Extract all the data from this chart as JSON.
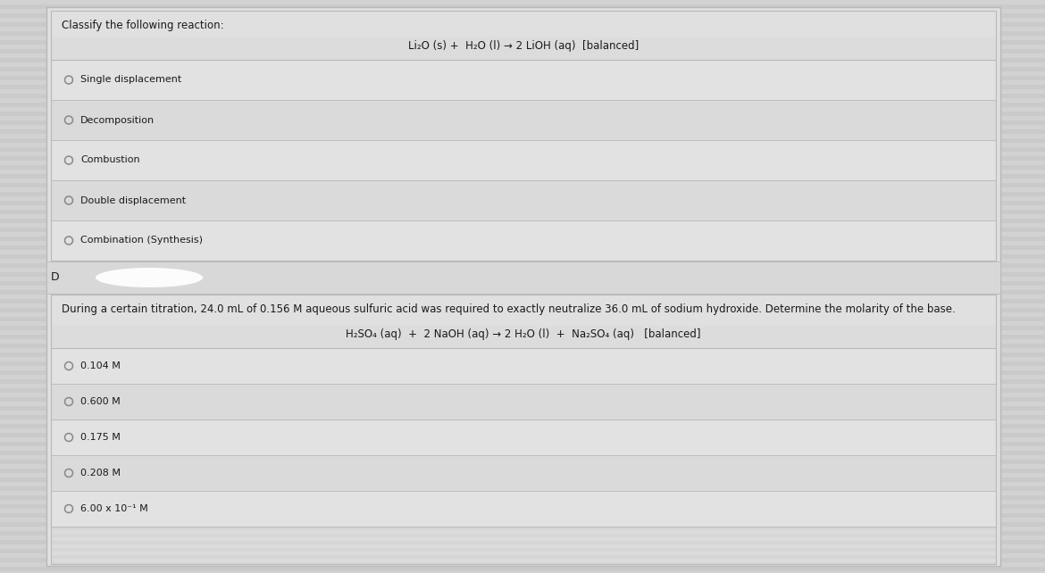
{
  "bg_outer": "#c8c8c8",
  "bg_main": "#d4d4d4",
  "panel_bg": "#dcdcdc",
  "panel_light": "#e2e2e2",
  "row_alt": "#d8d8d8",
  "border_color": "#b8b8b8",
  "text_color": "#1a1a1a",
  "circle_color": "#888888",
  "title1": "Classify the following reaction:",
  "equation1": "Li₂O (s) +  H₂O (l) → 2 LiOH (aq)  [balanced]",
  "options1": [
    "Single displacement",
    "Decomposition",
    "Combustion",
    "Double displacement",
    "Combination (Synthesis)"
  ],
  "title2": "During a certain titration, 24.0 mL of 0.156 M aqueous sulfuric acid was required to exactly neutralize 36.0 mL of sodium hydroxide. Determine the molarity of the base.",
  "equation2": "H₂SO₄ (aq)  +  2 NaOH (aq) → 2 H₂O (l)  +  Na₂SO₄ (aq)   [balanced]",
  "options2": [
    "0.104 M",
    "0.600 M",
    "0.175 M",
    "0.208 M",
    "6.00 x 10⁻¹ M"
  ],
  "font_size_title": 8.5,
  "font_size_eq": 8.5,
  "font_size_option": 8.0,
  "stripe_color_a": "#d2d2d2",
  "stripe_color_b": "#cacaca"
}
